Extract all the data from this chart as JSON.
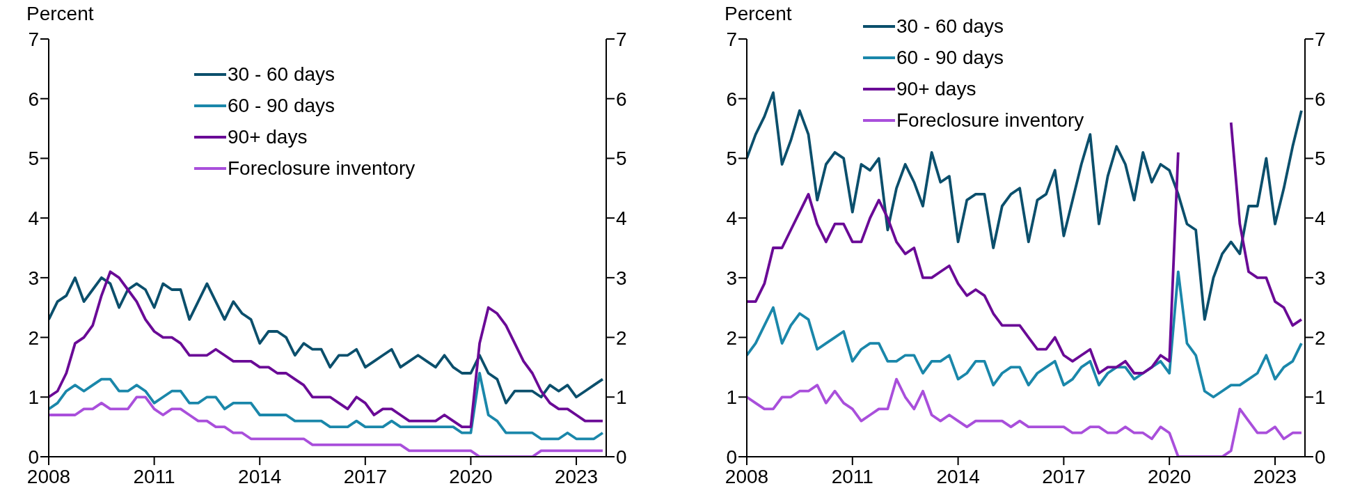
{
  "chart_data": [
    {
      "type": "line",
      "ylabel": "Percent",
      "legend": "top",
      "xlim": [
        2008,
        2023.85
      ],
      "xticks": [
        2008,
        2011,
        2014,
        2017,
        2020,
        2023
      ],
      "ylim": [
        0,
        7
      ],
      "yticks": [
        0,
        1,
        2,
        3,
        4,
        5,
        6,
        7
      ],
      "y2lim": [
        0,
        7
      ],
      "y2ticks": [
        0,
        1,
        2,
        3,
        4,
        5,
        6,
        7
      ],
      "x": [
        2008,
        2008.25,
        2008.5,
        2008.75,
        2009,
        2009.25,
        2009.5,
        2009.75,
        2010,
        2010.25,
        2010.5,
        2010.75,
        2011,
        2011.25,
        2011.5,
        2011.75,
        2012,
        2012.25,
        2012.5,
        2012.75,
        2013,
        2013.25,
        2013.5,
        2013.75,
        2014,
        2014.25,
        2014.5,
        2014.75,
        2015,
        2015.25,
        2015.5,
        2015.75,
        2016,
        2016.25,
        2016.5,
        2016.75,
        2017,
        2017.25,
        2017.5,
        2017.75,
        2018,
        2018.25,
        2018.5,
        2018.75,
        2019,
        2019.25,
        2019.5,
        2019.75,
        2020,
        2020.25,
        2020.5,
        2020.75,
        2021,
        2021.25,
        2021.5,
        2021.75,
        2022,
        2022.25,
        2022.5,
        2022.75,
        2023,
        2023.25,
        2023.5,
        2023.75
      ],
      "series": [
        {
          "name": "30 - 60 days",
          "color": "#0b4f6c",
          "values": [
            2.3,
            2.6,
            2.7,
            3.0,
            2.6,
            2.8,
            3.0,
            2.9,
            2.5,
            2.8,
            2.9,
            2.8,
            2.5,
            2.9,
            2.8,
            2.8,
            2.3,
            2.6,
            2.9,
            2.6,
            2.3,
            2.6,
            2.4,
            2.3,
            1.9,
            2.1,
            2.1,
            2.0,
            1.7,
            1.9,
            1.8,
            1.8,
            1.5,
            1.7,
            1.7,
            1.8,
            1.5,
            1.6,
            1.7,
            1.8,
            1.5,
            1.6,
            1.7,
            1.6,
            1.5,
            1.7,
            1.5,
            1.4,
            1.4,
            1.7,
            1.4,
            1.3,
            0.9,
            1.1,
            1.1,
            1.1,
            1.0,
            1.2,
            1.1,
            1.2,
            1.0,
            1.1,
            1.2,
            1.3
          ]
        },
        {
          "name": "60 - 90 days",
          "color": "#1a87aa",
          "values": [
            0.8,
            0.9,
            1.1,
            1.2,
            1.1,
            1.2,
            1.3,
            1.3,
            1.1,
            1.1,
            1.2,
            1.1,
            0.9,
            1.0,
            1.1,
            1.1,
            0.9,
            0.9,
            1.0,
            1.0,
            0.8,
            0.9,
            0.9,
            0.9,
            0.7,
            0.7,
            0.7,
            0.7,
            0.6,
            0.6,
            0.6,
            0.6,
            0.5,
            0.5,
            0.5,
            0.6,
            0.5,
            0.5,
            0.5,
            0.6,
            0.5,
            0.5,
            0.5,
            0.5,
            0.5,
            0.5,
            0.5,
            0.4,
            0.4,
            1.4,
            0.7,
            0.6,
            0.4,
            0.4,
            0.4,
            0.4,
            0.3,
            0.3,
            0.3,
            0.4,
            0.3,
            0.3,
            0.3,
            0.4
          ]
        },
        {
          "name": "90+ days",
          "color": "#6a0a96",
          "values": [
            1.0,
            1.1,
            1.4,
            1.9,
            2.0,
            2.2,
            2.7,
            3.1,
            3.0,
            2.8,
            2.6,
            2.3,
            2.1,
            2.0,
            2.0,
            1.9,
            1.7,
            1.7,
            1.7,
            1.8,
            1.7,
            1.6,
            1.6,
            1.6,
            1.5,
            1.5,
            1.4,
            1.4,
            1.3,
            1.2,
            1.0,
            1.0,
            1.0,
            0.9,
            0.8,
            1.0,
            0.9,
            0.7,
            0.8,
            0.8,
            0.7,
            0.6,
            0.6,
            0.6,
            0.6,
            0.7,
            0.6,
            0.5,
            0.5,
            1.9,
            2.5,
            2.4,
            2.2,
            1.9,
            1.6,
            1.4,
            1.1,
            0.9,
            0.8,
            0.8,
            0.7,
            0.6,
            0.6,
            0.6
          ]
        },
        {
          "name": "Foreclosure inventory",
          "color": "#a94fdb",
          "values": [
            0.7,
            0.7,
            0.7,
            0.7,
            0.8,
            0.8,
            0.9,
            0.8,
            0.8,
            0.8,
            1.0,
            1.0,
            0.8,
            0.7,
            0.8,
            0.8,
            0.7,
            0.6,
            0.6,
            0.5,
            0.5,
            0.4,
            0.4,
            0.3,
            0.3,
            0.3,
            0.3,
            0.3,
            0.3,
            0.3,
            0.2,
            0.2,
            0.2,
            0.2,
            0.2,
            0.2,
            0.2,
            0.2,
            0.2,
            0.2,
            0.2,
            0.1,
            0.1,
            0.1,
            0.1,
            0.1,
            0.1,
            0.1,
            0.1,
            0,
            0,
            0,
            0,
            0,
            0,
            0,
            0.1,
            0.1,
            0.1,
            0.1,
            0.1,
            0.1,
            0.1,
            0.1
          ]
        }
      ]
    },
    {
      "type": "line",
      "ylabel": "Percent",
      "legend": "top",
      "xlim": [
        2008,
        2023.85
      ],
      "xticks": [
        2008,
        2011,
        2014,
        2017,
        2020,
        2023
      ],
      "ylim": [
        0,
        7
      ],
      "yticks": [
        0,
        1,
        2,
        3,
        4,
        5,
        6,
        7
      ],
      "y2lim": [
        0,
        7
      ],
      "y2ticks": [
        0,
        1,
        2,
        3,
        4,
        5,
        6,
        7
      ],
      "x": [
        2008,
        2008.25,
        2008.5,
        2008.75,
        2009,
        2009.25,
        2009.5,
        2009.75,
        2010,
        2010.25,
        2010.5,
        2010.75,
        2011,
        2011.25,
        2011.5,
        2011.75,
        2012,
        2012.25,
        2012.5,
        2012.75,
        2013,
        2013.25,
        2013.5,
        2013.75,
        2014,
        2014.25,
        2014.5,
        2014.75,
        2015,
        2015.25,
        2015.5,
        2015.75,
        2016,
        2016.25,
        2016.5,
        2016.75,
        2017,
        2017.25,
        2017.5,
        2017.75,
        2018,
        2018.25,
        2018.5,
        2018.75,
        2019,
        2019.25,
        2019.5,
        2019.75,
        2020,
        2020.25,
        2020.5,
        2020.75,
        2021,
        2021.25,
        2021.5,
        2021.75,
        2022,
        2022.25,
        2022.5,
        2022.75,
        2023,
        2023.25,
        2023.5,
        2023.75
      ],
      "series": [
        {
          "name": "30 - 60 days",
          "color": "#0b4f6c",
          "values": [
            5.0,
            5.4,
            5.7,
            6.1,
            4.9,
            5.3,
            5.8,
            5.4,
            4.3,
            4.9,
            5.1,
            5.0,
            4.1,
            4.9,
            4.8,
            5.0,
            3.8,
            4.5,
            4.9,
            4.6,
            4.2,
            5.1,
            4.6,
            4.7,
            3.6,
            4.3,
            4.4,
            4.4,
            3.5,
            4.2,
            4.4,
            4.5,
            3.6,
            4.3,
            4.4,
            4.8,
            3.7,
            4.3,
            4.9,
            5.4,
            3.9,
            4.7,
            5.2,
            4.9,
            4.3,
            5.1,
            4.6,
            4.9,
            4.8,
            4.4,
            3.9,
            3.8,
            2.3,
            3.0,
            3.4,
            3.6,
            3.4,
            4.2,
            4.2,
            5.0,
            3.9,
            4.5,
            5.2,
            5.8
          ]
        },
        {
          "name": "60 - 90 days",
          "color": "#1a87aa",
          "values": [
            1.7,
            1.9,
            2.2,
            2.5,
            1.9,
            2.2,
            2.4,
            2.3,
            1.8,
            1.9,
            2.0,
            2.1,
            1.6,
            1.8,
            1.9,
            1.9,
            1.6,
            1.6,
            1.7,
            1.7,
            1.4,
            1.6,
            1.6,
            1.7,
            1.3,
            1.4,
            1.6,
            1.6,
            1.2,
            1.4,
            1.5,
            1.5,
            1.2,
            1.4,
            1.5,
            1.6,
            1.2,
            1.3,
            1.5,
            1.6,
            1.2,
            1.4,
            1.5,
            1.5,
            1.3,
            1.4,
            1.5,
            1.6,
            1.4,
            3.1,
            1.9,
            1.7,
            1.1,
            1.0,
            1.1,
            1.2,
            1.2,
            1.3,
            1.4,
            1.7,
            1.3,
            1.5,
            1.6,
            1.9
          ]
        },
        {
          "name": "90+ days",
          "color": "#6a0a96",
          "values": [
            2.6,
            2.6,
            2.9,
            3.5,
            3.5,
            3.8,
            4.1,
            4.4,
            3.9,
            3.6,
            3.9,
            3.9,
            3.6,
            3.6,
            4.0,
            4.3,
            4.0,
            3.6,
            3.4,
            3.5,
            3.0,
            3.0,
            3.1,
            3.2,
            2.9,
            2.7,
            2.8,
            2.7,
            2.4,
            2.2,
            2.2,
            2.2,
            2.0,
            1.8,
            1.8,
            2.0,
            1.7,
            1.6,
            1.7,
            1.8,
            1.4,
            1.5,
            1.5,
            1.6,
            1.4,
            1.4,
            1.5,
            1.7,
            1.6,
            5.1,
            null,
            null,
            null,
            null,
            null,
            5.6,
            3.9,
            3.1,
            3.0,
            3.0,
            2.6,
            2.5,
            2.2,
            2.3
          ]
        },
        {
          "name": "Foreclosure inventory",
          "color": "#a94fdb",
          "values": [
            1.0,
            0.9,
            0.8,
            0.8,
            1.0,
            1.0,
            1.1,
            1.1,
            1.2,
            0.9,
            1.1,
            0.9,
            0.8,
            0.6,
            0.7,
            0.8,
            0.8,
            1.3,
            1.0,
            0.8,
            1.1,
            0.7,
            0.6,
            0.7,
            0.6,
            0.5,
            0.6,
            0.6,
            0.6,
            0.6,
            0.5,
            0.6,
            0.5,
            0.5,
            0.5,
            0.5,
            0.5,
            0.4,
            0.4,
            0.5,
            0.5,
            0.4,
            0.4,
            0.5,
            0.4,
            0.4,
            0.3,
            0.5,
            0.4,
            0,
            0,
            0,
            0,
            0,
            0,
            0.1,
            0.8,
            0.6,
            0.4,
            0.4,
            0.5,
            0.3,
            0.4,
            0.4
          ]
        }
      ]
    }
  ]
}
